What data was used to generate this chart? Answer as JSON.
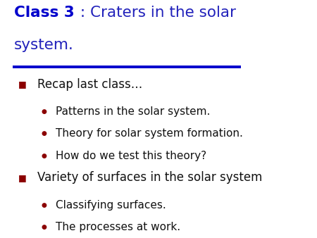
{
  "bg_color": "#ffffff",
  "title_bold_text": "Class 3",
  "title_sep_text": " : ",
  "title_rest_line1": "Craters in the solar",
  "title_line2": "system.",
  "title_bold_color": "#0000cc",
  "title_normal_color": "#2222bb",
  "divider_color": "#0000cc",
  "bullet_main_color": "#8b0000",
  "bullet_sub_color": "#8b0000",
  "text_color": "#111111",
  "items": [
    {
      "type": "main",
      "text": "Recap last class…"
    },
    {
      "type": "sub",
      "text": "Patterns in the solar system."
    },
    {
      "type": "sub",
      "text": "Theory for solar system formation."
    },
    {
      "type": "sub",
      "text": "How do we test this theory?"
    },
    {
      "type": "main",
      "text": "Variety of surfaces in the solar system"
    },
    {
      "type": "sub",
      "text": "Classifying surfaces."
    },
    {
      "type": "sub",
      "text": "The processes at work."
    }
  ],
  "title_fontsize": 15.5,
  "main_fontsize": 12.0,
  "sub_fontsize": 11.0,
  "main_bullet_fontsize": 9,
  "sub_bullet_fontsize": 6.5
}
